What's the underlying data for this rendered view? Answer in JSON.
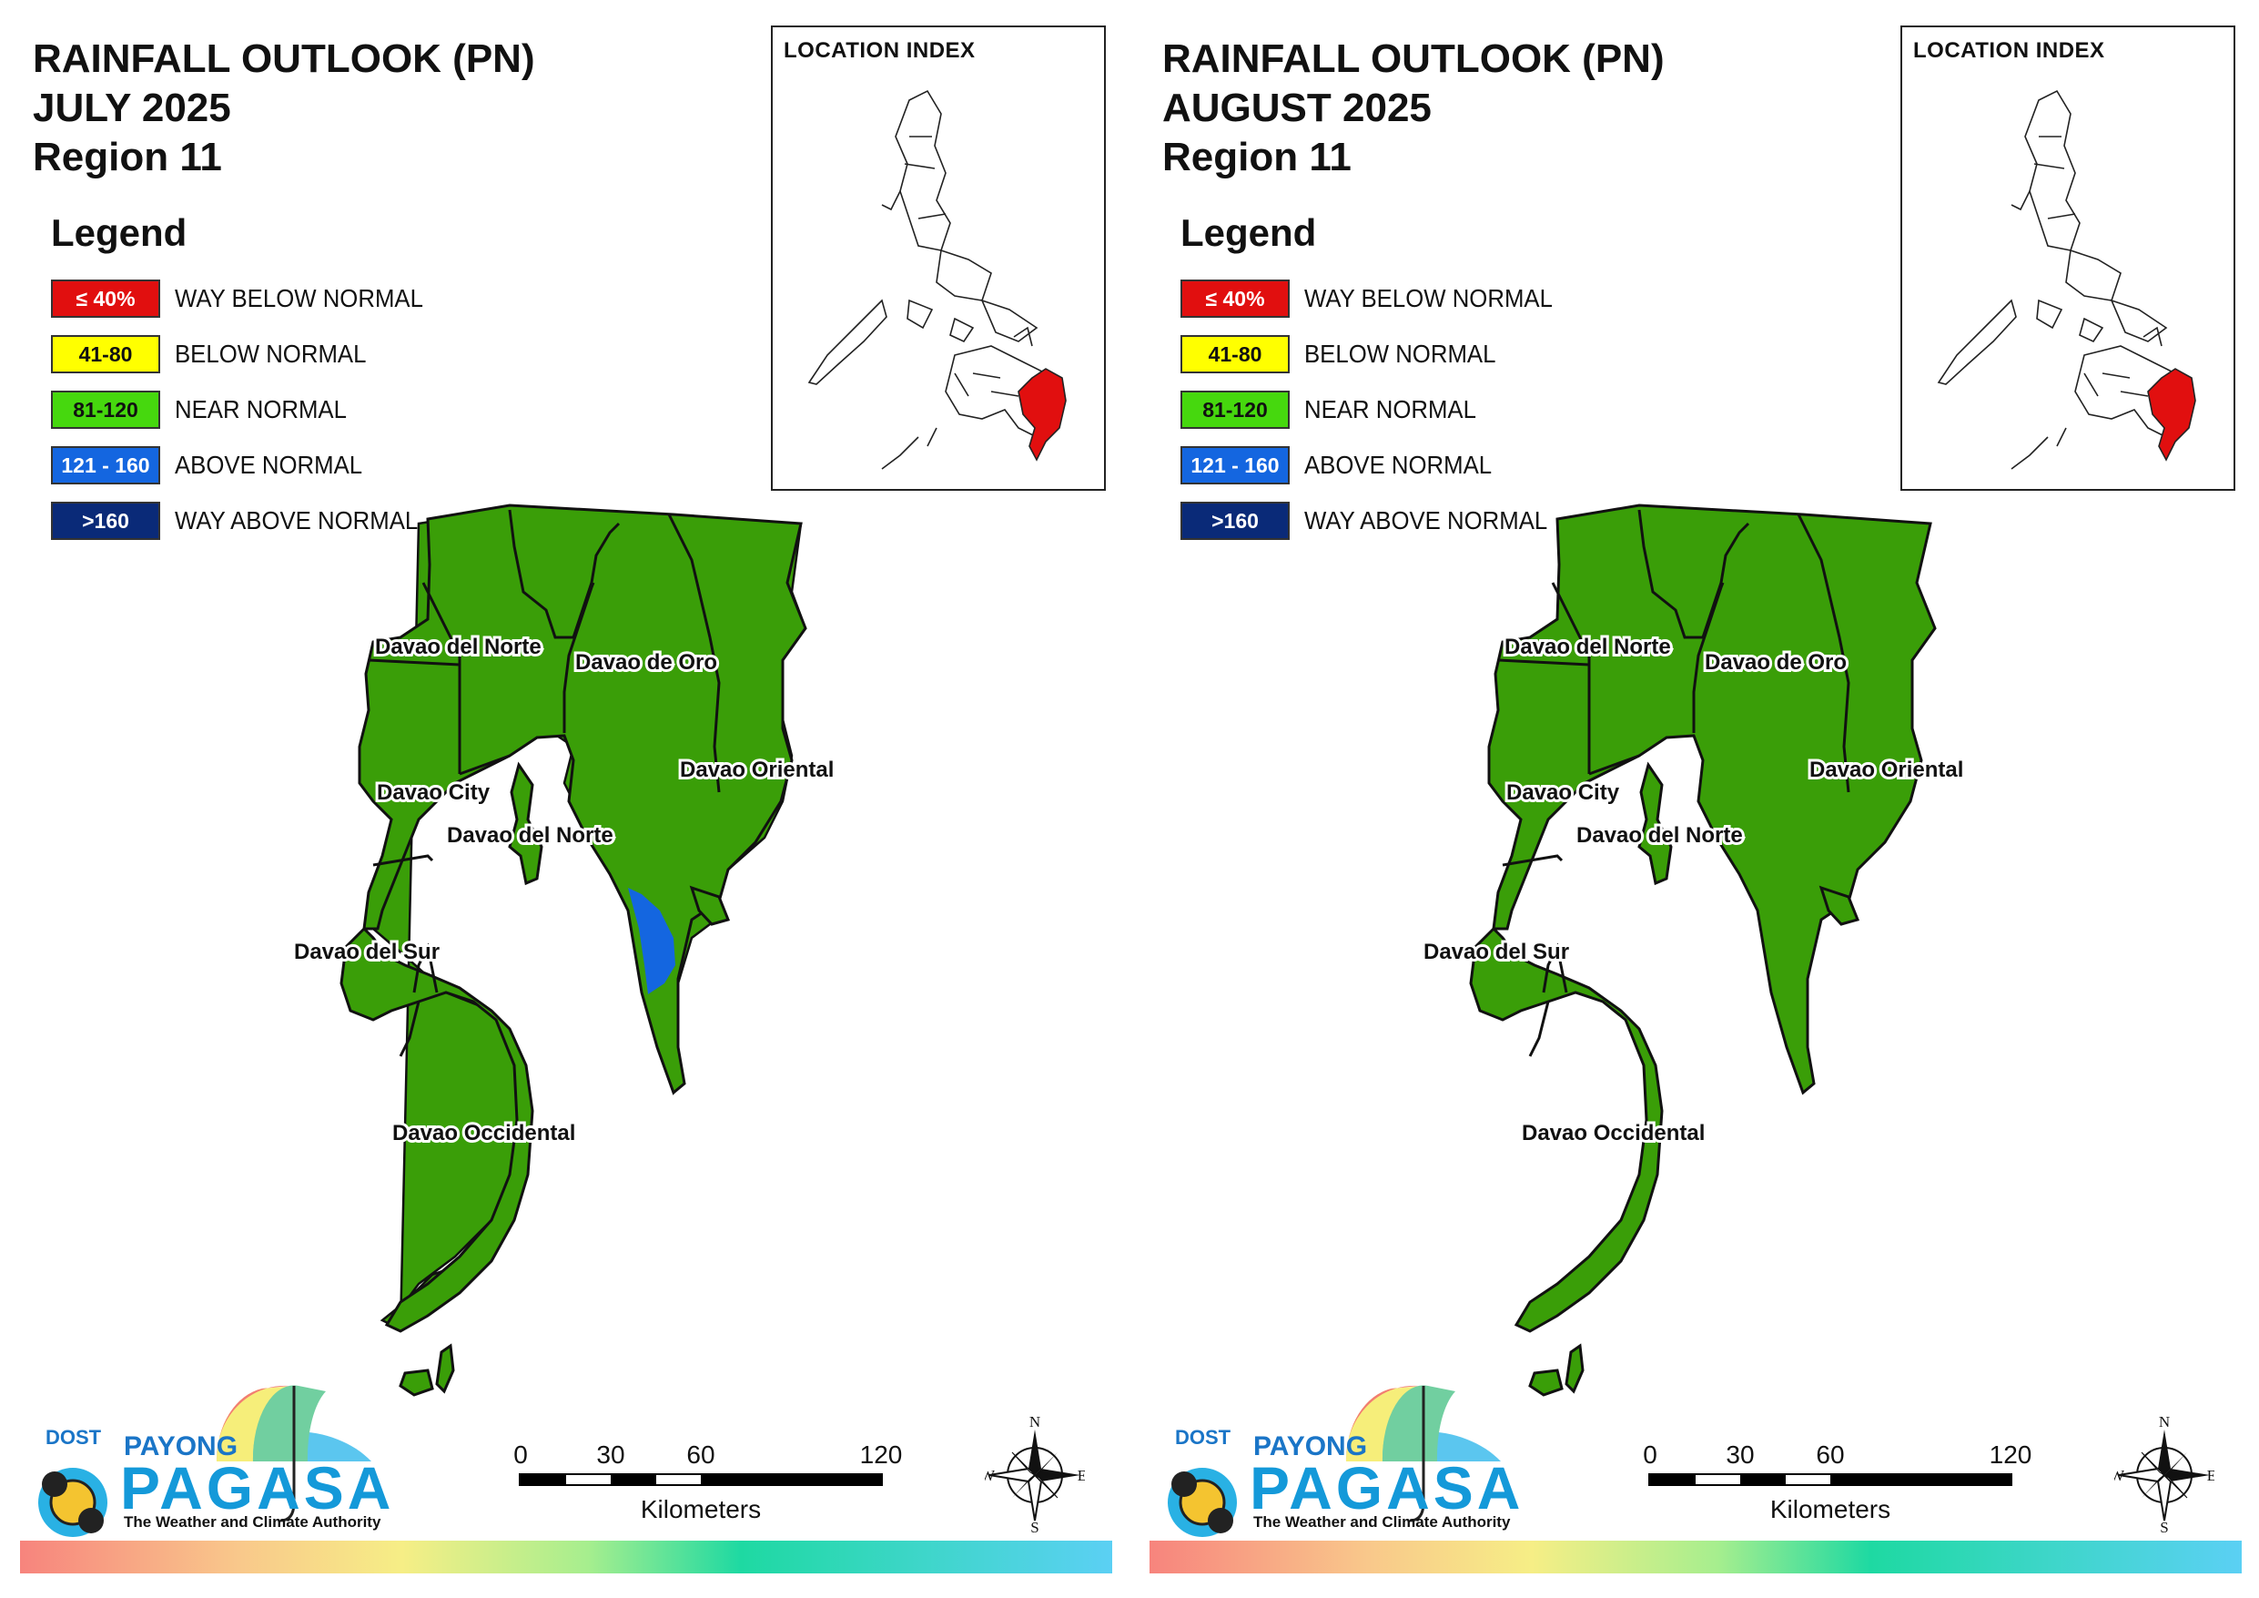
{
  "panels": [
    {
      "title_line1": "RAINFALL OUTLOOK (PN)",
      "title_line2": "JULY 2025",
      "title_line3": "Region 11",
      "anomaly_area": "above-normal",
      "labels": {
        "davao_del_norte_a": "Davao del Norte",
        "davao_de_oro": "Davao de Oro",
        "davao_oriental": "Davao Oriental",
        "davao_city": "Davao City",
        "davao_del_norte_b": "Davao del Norte",
        "davao_del_sur": "Davao del Sur",
        "davao_occidental": "Davao Occidental"
      }
    },
    {
      "title_line1": "RAINFALL OUTLOOK (PN)",
      "title_line2": "AUGUST 2025",
      "title_line3": "Region 11",
      "anomaly_area": "none",
      "labels": {
        "davao_del_norte_a": "Davao del Norte",
        "davao_de_oro": "Davao de Oro",
        "davao_oriental": "Davao Oriental",
        "davao_city": "Davao City",
        "davao_del_norte_b": "Davao del Norte",
        "davao_del_sur": "Davao del Sur",
        "davao_occidental": "Davao Occidental"
      }
    }
  ],
  "legend": {
    "title": "Legend",
    "items": [
      {
        "range": "≤ 40%",
        "label": "WAY BELOW NORMAL",
        "color": "#e10f0f",
        "text_color": "#ffffff"
      },
      {
        "range": "41-80",
        "label": "BELOW NORMAL",
        "color": "#ffff00",
        "text_color": "#111111"
      },
      {
        "range": "81-120",
        "label": "NEAR NORMAL",
        "color": "#46d80e",
        "text_color": "#111111"
      },
      {
        "range": "121 - 160",
        "label": "ABOVE NORMAL",
        "color": "#1466e0",
        "text_color": "#ffffff"
      },
      {
        "range": ">160",
        "label": "WAY ABOVE NORMAL",
        "color": "#0a2a78",
        "text_color": "#ffffff"
      }
    ]
  },
  "inset": {
    "title": "LOCATION INDEX",
    "highlight_color": "#e10f0f"
  },
  "map_colors": {
    "near_normal_fill": "#3a9e08",
    "above_normal_fill": "#1466e0",
    "boundary": "#111111"
  },
  "scale_bar": {
    "ticks": [
      "0",
      "30",
      "60",
      "120"
    ],
    "unit": "Kilometers"
  },
  "compass": {
    "n": "N",
    "e": "E",
    "s": "S",
    "w": "W"
  },
  "logo": {
    "dost": "DOST",
    "payong": "PAYONG",
    "pagasa": "PAGASA",
    "tagline": "The Weather and Climate Authority"
  }
}
